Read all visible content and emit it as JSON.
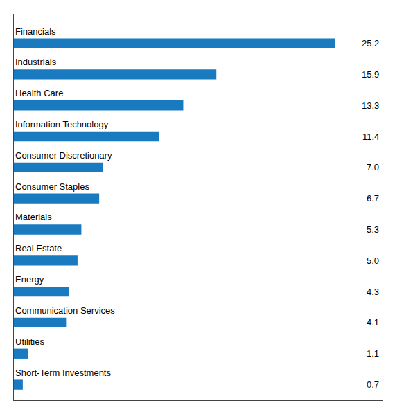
{
  "chart_data": {
    "type": "bar",
    "orientation": "horizontal",
    "categories": [
      "Financials",
      "Industrials",
      "Health Care",
      "Information Technology",
      "Consumer Discretionary",
      "Consumer Staples",
      "Materials",
      "Real Estate",
      "Energy",
      "Communication Services",
      "Utilities",
      "Short-Term Investments"
    ],
    "values": [
      25.2,
      15.9,
      13.3,
      11.4,
      7.0,
      6.7,
      5.3,
      5.0,
      4.3,
      4.1,
      1.1,
      0.7
    ],
    "value_labels": [
      "25.2",
      "15.9",
      "13.3",
      "11.4",
      "7.0",
      "6.7",
      "5.3",
      "5.0",
      "4.3",
      "4.1",
      "1.1",
      "0.7"
    ],
    "color": "#1a7abf",
    "xlim": [
      0,
      29
    ],
    "grid": false,
    "tick_labels": false,
    "data_labels": true
  }
}
